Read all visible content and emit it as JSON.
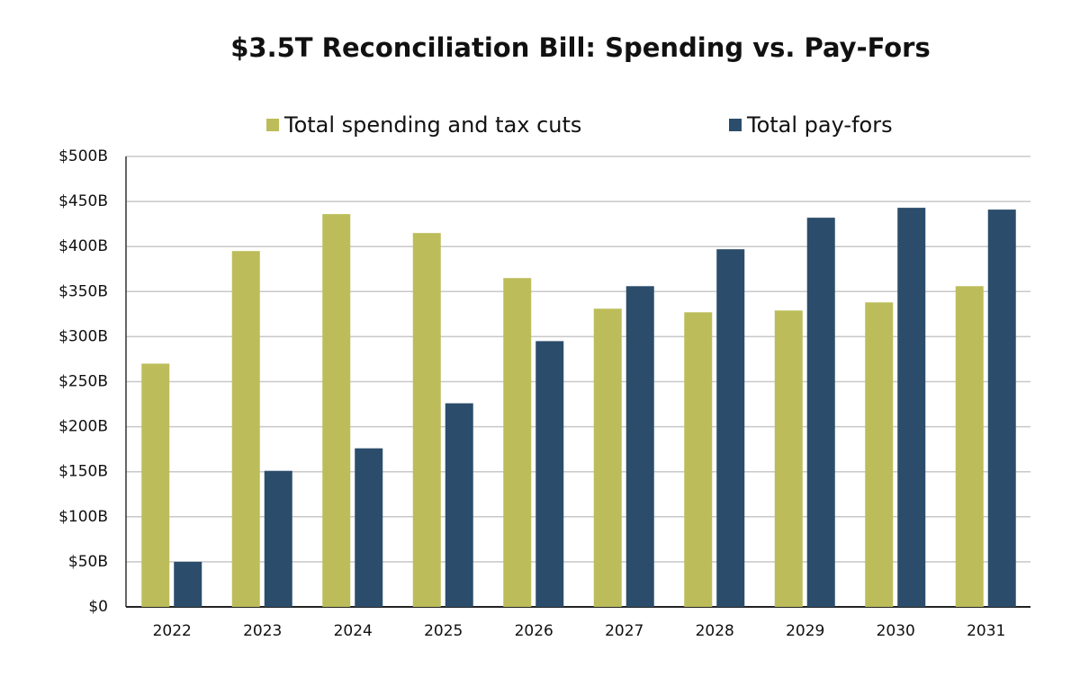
{
  "chart_data": {
    "type": "bar",
    "title": "$3.5T Reconciliation Bill: Spending vs. Pay-Fors",
    "categories": [
      "2022",
      "2023",
      "2024",
      "2025",
      "2026",
      "2027",
      "2028",
      "2029",
      "2030",
      "2031"
    ],
    "series": [
      {
        "name": "Total spending and tax cuts",
        "color": "#bcbd5a",
        "values": [
          270,
          395,
          436,
          415,
          365,
          331,
          327,
          329,
          338,
          356
        ]
      },
      {
        "name": "Total pay-fors",
        "color": "#2b4d6b",
        "values": [
          50,
          151,
          176,
          226,
          295,
          356,
          397,
          432,
          443,
          441
        ]
      }
    ],
    "ylim": [
      0,
      500
    ],
    "yticks": [
      {
        "value": 0,
        "label": "$0"
      },
      {
        "value": 50,
        "label": "$50B"
      },
      {
        "value": 100,
        "label": "$100B"
      },
      {
        "value": 150,
        "label": "$150B"
      },
      {
        "value": 200,
        "label": "$200B"
      },
      {
        "value": 250,
        "label": "$250B"
      },
      {
        "value": 300,
        "label": "$300B"
      },
      {
        "value": 350,
        "label": "$350B"
      },
      {
        "value": 400,
        "label": "$400B"
      },
      {
        "value": 450,
        "label": "$450B"
      },
      {
        "value": 500,
        "label": "$500B"
      }
    ],
    "grid": true
  }
}
